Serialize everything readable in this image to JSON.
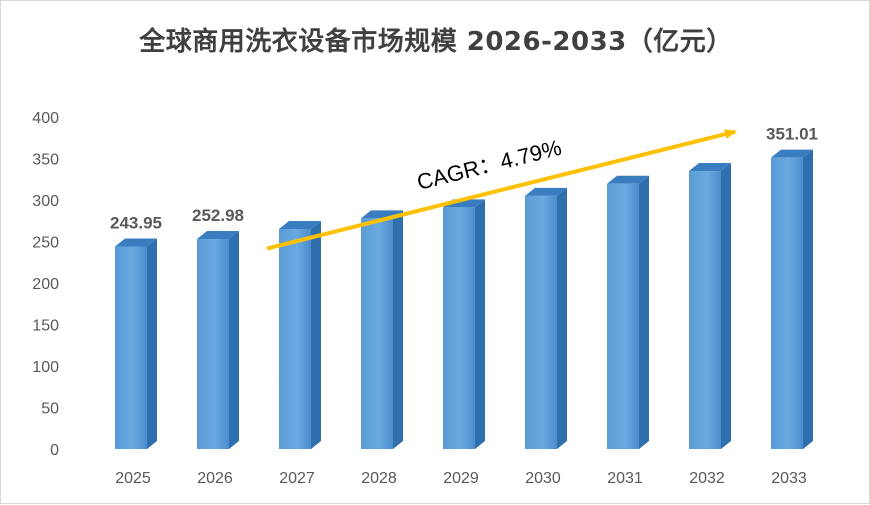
{
  "chart_data": {
    "type": "bar",
    "title": "全球商用洗衣设备市场规模 2026-2033（亿元）",
    "categories": [
      "2025",
      "2026",
      "2027",
      "2028",
      "2029",
      "2030",
      "2031",
      "2032",
      "2033"
    ],
    "values": [
      243.95,
      252.98,
      265.1,
      277.8,
      291.1,
      305.0,
      319.6,
      334.9,
      351.01
    ],
    "data_labels": [
      {
        "index": 0,
        "text": "243.95"
      },
      {
        "index": 1,
        "text": "252.98"
      },
      {
        "index": 8,
        "text": "351.01"
      }
    ],
    "ylim": [
      0,
      400
    ],
    "yticks": [
      0,
      50,
      100,
      150,
      200,
      250,
      300,
      350,
      400
    ],
    "grid": false,
    "annotation": {
      "text": "CAGR：4.79%",
      "from_index": 2,
      "to_index": 8
    },
    "colors": {
      "bar_front": "#5b9bd5",
      "bar_side": "#2e6fae",
      "bar_top": "#3a7cc0",
      "arrow": "#ffc000"
    }
  }
}
